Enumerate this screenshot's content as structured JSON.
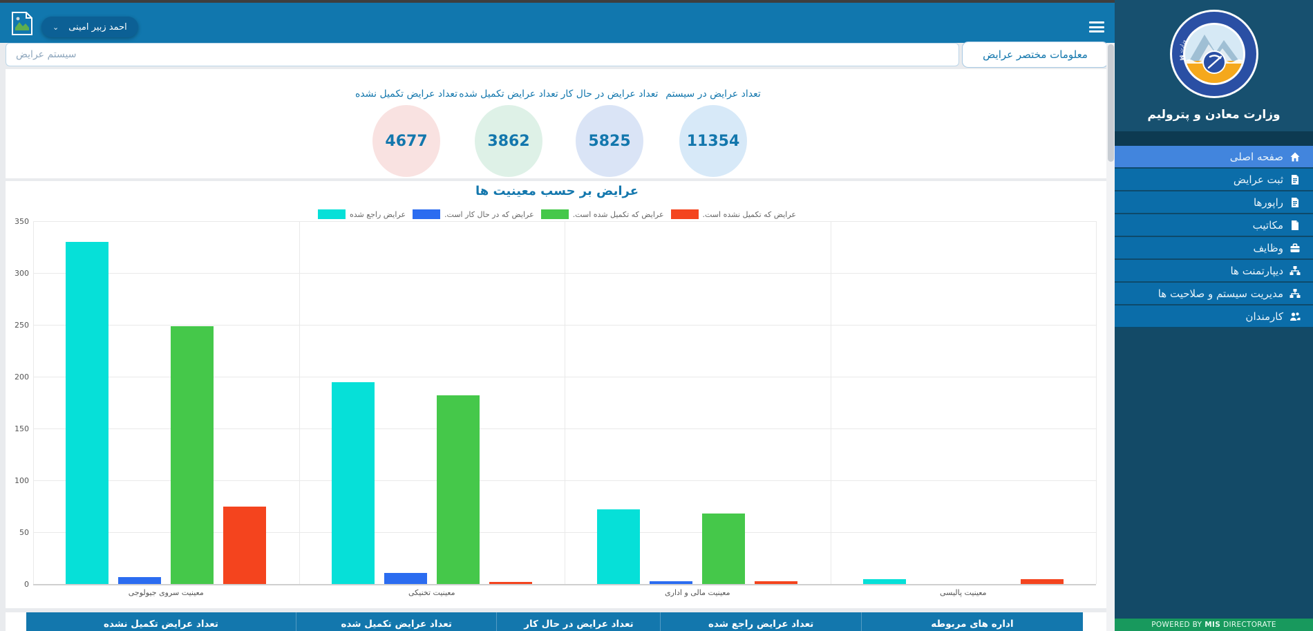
{
  "topbar": {
    "user_name": "احمد زبیر امینی"
  },
  "search": {
    "placeholder": "سیستم عرایض"
  },
  "page_title": "معلومات مختصر عرایض",
  "stats": [
    {
      "label": "تعداد عرایض در سیستم",
      "value": "11354",
      "circle_color": "#d7e9f8"
    },
    {
      "label": "تعداد عرایض در حال کار",
      "value": "5825",
      "circle_color": "#dae4f6"
    },
    {
      "label": "تعداد عرایض تکمیل شده",
      "value": "3862",
      "circle_color": "#def1e7"
    },
    {
      "label": "تعداد عرایض تکمیل نشده",
      "value": "4677",
      "circle_color": "#f9e2e1"
    }
  ],
  "chart_data": {
    "type": "bar",
    "title": "عرایض بر حسب معینیت ها",
    "categories": [
      "معینیت سروی جیولوجی",
      "معینیت تخنیکی",
      "معینیت مالی و اداری",
      "معینیت پالیسی"
    ],
    "series": [
      {
        "name": "عرایض راجع شده",
        "color": "#06e0d8",
        "values": [
          330,
          195,
          72,
          5
        ]
      },
      {
        "name": "عرایض که در حال کار است.",
        "color": "#2b6cf0",
        "values": [
          7,
          11,
          3,
          0
        ]
      },
      {
        "name": "عرایض که تکمیل شده است.",
        "color": "#45c84a",
        "values": [
          249,
          182,
          68,
          0
        ]
      },
      {
        "name": "عرایض که تکمیل نشده است.",
        "color": "#f4441e",
        "values": [
          75,
          2,
          3,
          5
        ]
      }
    ],
    "ylim": [
      0,
      350
    ],
    "ytick_step": 50,
    "grid": true,
    "legend_position": "top"
  },
  "table": {
    "headers": [
      "اداره های مربوطه",
      "تعداد عرایض راجع شده",
      "تعداد عرایض در حال کار",
      "تعداد عرایض تکمیل شده",
      "تعداد عرایض تکمیل نشده"
    ]
  },
  "sidebar": {
    "brand": "وزارت معادن و پترولیم",
    "items": [
      {
        "label": "صفحه اصلی",
        "icon": "home-icon",
        "active": true
      },
      {
        "label": "ثبت عرایض",
        "icon": "file-text-icon",
        "active": false
      },
      {
        "label": "راپورها",
        "icon": "file-text-icon",
        "active": false
      },
      {
        "label": "مکاتیب",
        "icon": "file-icon",
        "active": false
      },
      {
        "label": "وظایف",
        "icon": "briefcase-icon",
        "active": false
      },
      {
        "label": "دیپارتمنت ها",
        "icon": "sitemap-icon",
        "active": false
      },
      {
        "label": "مدیریت سیستم و صلاحیت ها",
        "icon": "sitemap-icon",
        "active": false
      },
      {
        "label": "کارمندان",
        "icon": "users-icon",
        "active": false
      }
    ],
    "footer": {
      "prefix": "POWERED BY",
      "bold": "MIS",
      "suffix": "DIRECTORATE"
    }
  },
  "colors": {
    "topbar": "#1177ae",
    "accent": "#1377ad",
    "sidebar_nav": "#0b6da9",
    "sidebar_active": "#4285dd",
    "footer_green": "#18995d"
  }
}
